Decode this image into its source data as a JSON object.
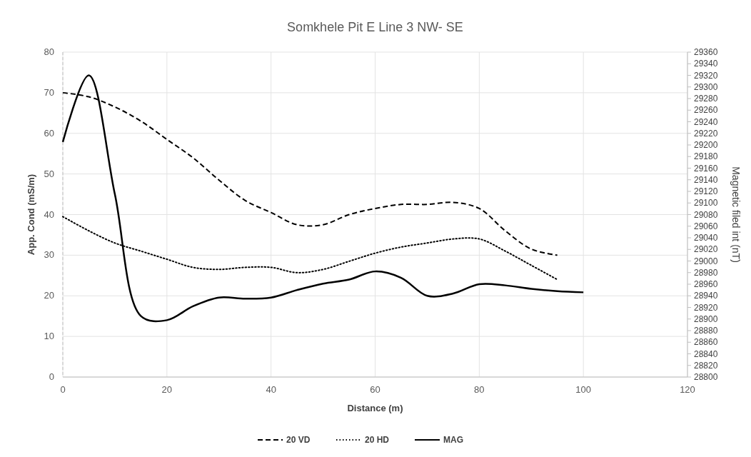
{
  "chart_data": {
    "type": "line",
    "title": "Somkhele Pit E Line 3 NW- SE",
    "xlabel": "Distance (m)",
    "ylabel": "App. Cond (mS/m)",
    "y2label": "Magnetic filed int (nT)",
    "xlim": [
      0,
      120
    ],
    "xticks": [
      0,
      20,
      40,
      60,
      80,
      100,
      120
    ],
    "ylim": [
      0,
      80
    ],
    "yticks": [
      0,
      10,
      20,
      30,
      40,
      50,
      60,
      70,
      80
    ],
    "y2lim": [
      28800,
      29360
    ],
    "y2ticks": [
      28800,
      28820,
      28840,
      28860,
      28880,
      28900,
      28920,
      28940,
      28960,
      28980,
      29000,
      29020,
      29040,
      29060,
      29080,
      29100,
      29120,
      29140,
      29160,
      29180,
      29200,
      29220,
      29240,
      29260,
      29280,
      29300,
      29320,
      29340,
      29360
    ],
    "grid": true,
    "legend": "bottom",
    "series": [
      {
        "name": "20 VD",
        "color": "#000000",
        "line_style": "dashed",
        "x": [
          0,
          5,
          10,
          15,
          20,
          25,
          30,
          35,
          40,
          45,
          50,
          55,
          60,
          65,
          70,
          75,
          80,
          85,
          90,
          95
        ],
        "values": [
          70,
          69,
          66.5,
          63,
          58.5,
          54,
          48.5,
          43.5,
          40.5,
          37.5,
          37.5,
          40,
          41.5,
          42.5,
          42.5,
          43,
          41.5,
          36,
          31.5,
          30
        ]
      },
      {
        "name": "20 HD",
        "color": "#000000",
        "line_style": "dotted",
        "x": [
          0,
          5,
          10,
          15,
          20,
          25,
          30,
          35,
          40,
          45,
          50,
          55,
          60,
          65,
          70,
          75,
          80,
          85,
          90,
          95
        ],
        "values": [
          39.5,
          36,
          33,
          31,
          29,
          27,
          26.5,
          27,
          27,
          25.7,
          26.5,
          28.5,
          30.5,
          32,
          33,
          34,
          34,
          31,
          27.5,
          24
        ]
      },
      {
        "name": "MAG",
        "color": "#000000",
        "line_style": "solid",
        "axis": "y2",
        "x": [
          0,
          5,
          10,
          15,
          20,
          25,
          30,
          35,
          40,
          45,
          50,
          55,
          60,
          65,
          70,
          75,
          80,
          85,
          90,
          95,
          100
        ],
        "values": [
          29205,
          29320,
          29115,
          28905,
          28898,
          28922,
          28937,
          28935,
          28937,
          28950,
          28961,
          28968,
          28982,
          28971,
          28940,
          28944,
          28960,
          28958,
          28952,
          28948,
          28946
        ]
      }
    ]
  }
}
